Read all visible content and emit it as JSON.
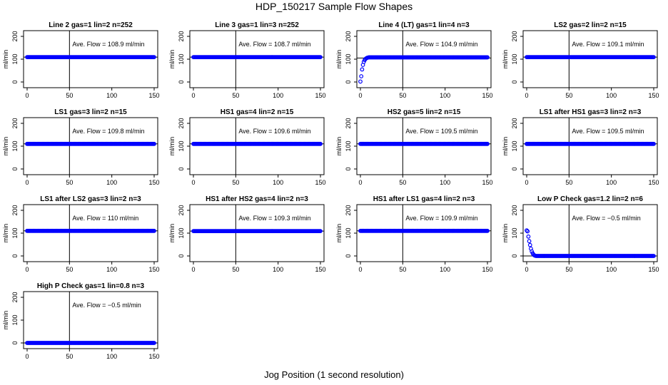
{
  "title": "HDP_150217  Sample Flow Shapes",
  "xlabel": "Jog Position (1 second resolution)",
  "colors": {
    "points": "#0000ff"
  },
  "chart_data": [
    {
      "type": "scatter",
      "title": "Line 2 gas=1 lin=2 n=252",
      "ylabel": "ml/min",
      "annotation": "Ave. Flow =  108.9  ml/min",
      "xlim": [
        0,
        150
      ],
      "ylim": [
        -25,
        225
      ],
      "xticks": [
        "0",
        "50",
        "100",
        "150"
      ],
      "yticks": [
        "0",
        "100",
        "200"
      ],
      "vline": 50,
      "hline": 109,
      "shape": "flat",
      "level": 109
    },
    {
      "type": "scatter",
      "title": "Line 3 gas=1 lin=3 n=252",
      "ylabel": "ml/min",
      "annotation": "Ave. Flow =  108.7  ml/min",
      "xlim": [
        0,
        150
      ],
      "ylim": [
        -25,
        225
      ],
      "xticks": [
        "0",
        "50",
        "100",
        "150"
      ],
      "yticks": [
        "0",
        "100",
        "200"
      ],
      "vline": 50,
      "hline": 109,
      "shape": "flat",
      "level": 109
    },
    {
      "type": "scatter",
      "title": "Line 4 (LT) gas=1 lin=4 n=3",
      "ylabel": "ml/min",
      "annotation": "Ave. Flow =  104.9  ml/min",
      "xlim": [
        0,
        150
      ],
      "ylim": [
        -25,
        225
      ],
      "xticks": [
        "0",
        "50",
        "100",
        "150"
      ],
      "yticks": [
        "0",
        "100",
        "200"
      ],
      "vline": 50,
      "hline": 105,
      "shape": "rise",
      "level": 108
    },
    {
      "type": "scatter",
      "title": "LS2 gas=2 lin=2 n=15",
      "ylabel": "ml/min",
      "annotation": "Ave. Flow =  109.1  ml/min",
      "xlim": [
        0,
        150
      ],
      "ylim": [
        -25,
        225
      ],
      "xticks": [
        "0",
        "50",
        "100",
        "150"
      ],
      "yticks": [
        "0",
        "100",
        "200"
      ],
      "vline": 50,
      "hline": 109,
      "shape": "flat",
      "level": 109
    },
    {
      "type": "scatter",
      "title": "LS1 gas=3 lin=2 n=15",
      "ylabel": "ml/min",
      "annotation": "Ave. Flow =  109.8  ml/min",
      "xlim": [
        0,
        150
      ],
      "ylim": [
        -25,
        225
      ],
      "xticks": [
        "0",
        "50",
        "100",
        "150"
      ],
      "yticks": [
        "0",
        "100",
        "200"
      ],
      "vline": 50,
      "hline": 110,
      "shape": "flat",
      "level": 110
    },
    {
      "type": "scatter",
      "title": "HS1 gas=4 lin=2 n=15",
      "ylabel": "ml/min",
      "annotation": "Ave. Flow =  109.6  ml/min",
      "xlim": [
        0,
        150
      ],
      "ylim": [
        -25,
        225
      ],
      "xticks": [
        "0",
        "50",
        "100",
        "150"
      ],
      "yticks": [
        "0",
        "100",
        "200"
      ],
      "vline": 50,
      "hline": 110,
      "shape": "flat",
      "level": 110
    },
    {
      "type": "scatter",
      "title": "HS2 gas=5 lin=2 n=15",
      "ylabel": "ml/min",
      "annotation": "Ave. Flow =  109.5  ml/min",
      "xlim": [
        0,
        150
      ],
      "ylim": [
        -25,
        225
      ],
      "xticks": [
        "0",
        "50",
        "100",
        "150"
      ],
      "yticks": [
        "0",
        "100",
        "200"
      ],
      "vline": 50,
      "hline": 110,
      "shape": "flat",
      "level": 110
    },
    {
      "type": "scatter",
      "title": "LS1 after HS1 gas=3 lin=2 n=3",
      "ylabel": "ml/min",
      "annotation": "Ave. Flow =  109.5  ml/min",
      "xlim": [
        0,
        150
      ],
      "ylim": [
        -25,
        225
      ],
      "xticks": [
        "0",
        "50",
        "100",
        "150"
      ],
      "yticks": [
        "0",
        "100",
        "200"
      ],
      "vline": 50,
      "hline": 110,
      "shape": "flat",
      "level": 110
    },
    {
      "type": "scatter",
      "title": "LS1 after LS2 gas=3 lin=2 n=3",
      "ylabel": "ml/min",
      "annotation": "Ave. Flow =  110  ml/min",
      "xlim": [
        0,
        150
      ],
      "ylim": [
        -25,
        225
      ],
      "xticks": [
        "0",
        "50",
        "100",
        "150"
      ],
      "yticks": [
        "0",
        "100",
        "200"
      ],
      "vline": 50,
      "hline": 110,
      "shape": "flat",
      "level": 110
    },
    {
      "type": "scatter",
      "title": "HS1 after HS2 gas=4 lin=2 n=3",
      "ylabel": "ml/min",
      "annotation": "Ave. Flow =  109.3  ml/min",
      "xlim": [
        0,
        150
      ],
      "ylim": [
        -25,
        225
      ],
      "xticks": [
        "0",
        "50",
        "100",
        "150"
      ],
      "yticks": [
        "0",
        "100",
        "200"
      ],
      "vline": 50,
      "hline": 109,
      "shape": "flat",
      "level": 109
    },
    {
      "type": "scatter",
      "title": "HS1 after LS1 gas=4 lin=2 n=3",
      "ylabel": "ml/min",
      "annotation": "Ave. Flow =  109.9  ml/min",
      "xlim": [
        0,
        150
      ],
      "ylim": [
        -25,
        225
      ],
      "xticks": [
        "0",
        "50",
        "100",
        "150"
      ],
      "yticks": [
        "0",
        "100",
        "200"
      ],
      "vline": 50,
      "hline": 110,
      "shape": "flat",
      "level": 110
    },
    {
      "type": "scatter",
      "title": "Low P Check gas=1.2 lin=2 n=6",
      "ylabel": "ml/min",
      "annotation": "Ave. Flow =  −0.5  ml/min",
      "xlim": [
        0,
        150
      ],
      "ylim": [
        -25,
        225
      ],
      "xticks": [
        "0",
        "50",
        "100",
        "150"
      ],
      "yticks": [
        "0",
        "100",
        "200"
      ],
      "vline": 50,
      "hline": 0,
      "shape": "decay",
      "level": 0
    },
    {
      "type": "scatter",
      "title": "High P Check gas=1 lin=0.8 n=3",
      "ylabel": "ml/min",
      "annotation": "Ave. Flow =  −0.5  ml/min",
      "xlim": [
        0,
        150
      ],
      "ylim": [
        -25,
        225
      ],
      "xticks": [
        "0",
        "50",
        "100",
        "150"
      ],
      "yticks": [
        "0",
        "100",
        "200"
      ],
      "vline": 50,
      "hline": 0,
      "shape": "flat",
      "level": 0
    }
  ]
}
